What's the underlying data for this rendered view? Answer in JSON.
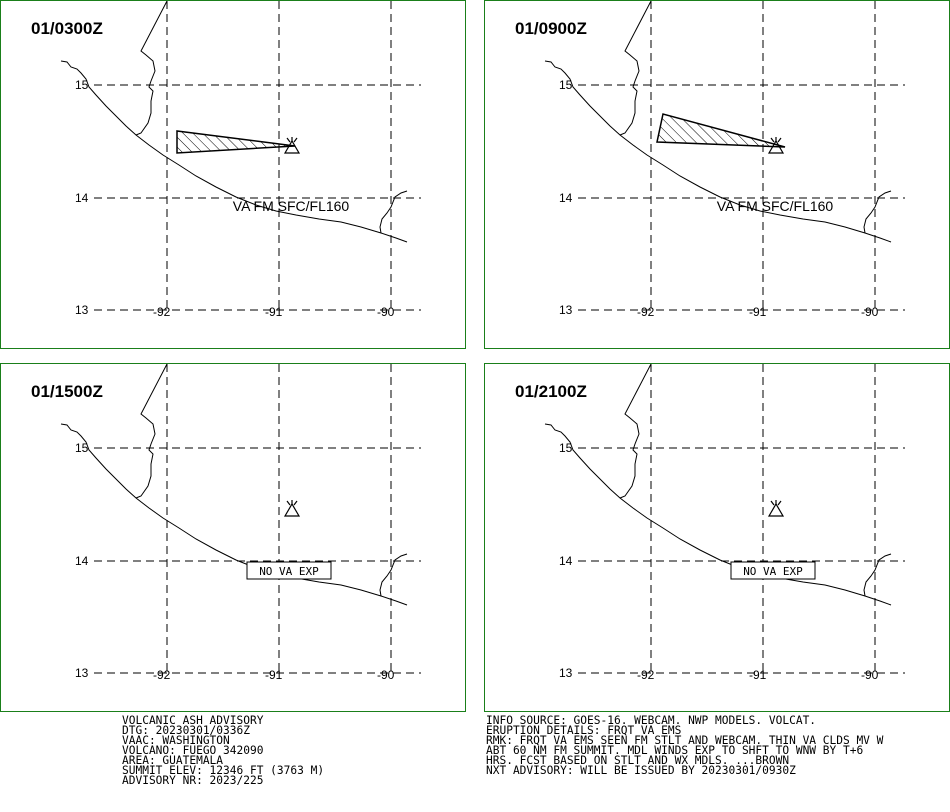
{
  "panels": [
    {
      "time": "01/0300Z",
      "label": "VA FM SFC/FL160",
      "label_boxed": false,
      "ash_cloud": true
    },
    {
      "time": "01/0900Z",
      "label": "VA FM SFC/FL160",
      "label_boxed": false,
      "ash_cloud": true
    },
    {
      "time": "01/1500Z",
      "label": "NO VA EXP",
      "label_boxed": true,
      "ash_cloud": false
    },
    {
      "time": "01/2100Z",
      "label": "NO VA EXP",
      "label_boxed": true,
      "ash_cloud": false
    }
  ],
  "grid": {
    "lat_labels": [
      "15",
      "14",
      "13"
    ],
    "lon_labels": [
      "-92",
      "-91",
      "-90"
    ]
  },
  "advisory": {
    "title": "VOLCANIC ASH ADVISORY",
    "dtg": "DTG: 20230301/0336Z",
    "vaac": "VAAC: WASHINGTON",
    "volcano": "VOLCANO: FUEGO 342090",
    "area": "AREA: GUATEMALA",
    "summit": "SUMMIT ELEV: 12346 FT (3763 M)",
    "advisory_nr": "ADVISORY NR: 2023/225"
  },
  "details": {
    "info_source": "INFO SOURCE: GOES-16. WEBCAM. NWP MODELS. VOLCAT.",
    "eruption": "ERUPTION DETAILS: FRQT VA EMS",
    "rmk1": "RMK: FRQT VA EMS SEEN FM STLT AND WEBCAM. THIN VA CLDS MV W",
    "rmk2": "ABT 60 NM FM SUMMIT. MDL WINDS EXP TO SHFT TO WNW BY T+6",
    "rmk3": "HRS. FCST BASED ON STLT AND WX MDLS. ...BROWN",
    "next": "NXT ADVISORY: WILL BE ISSUED BY 20230301/0930Z"
  },
  "colors": {
    "border": "#1a7f1a",
    "lines": "#000000"
  }
}
